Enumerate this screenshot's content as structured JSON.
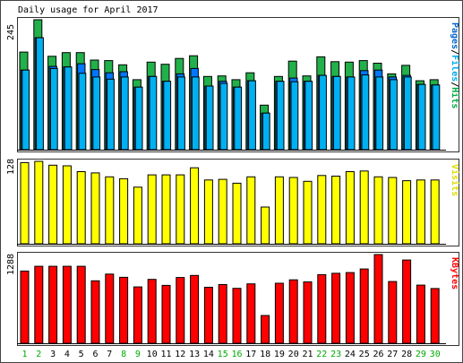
{
  "title": "Daily usage for April 2017",
  "chart_data": {
    "type": "bar",
    "title": "Daily usage for April 2017",
    "categories": [
      "1",
      "2",
      "3",
      "4",
      "5",
      "6",
      "7",
      "8",
      "9",
      "10",
      "11",
      "12",
      "13",
      "14",
      "15",
      "16",
      "17",
      "18",
      "19",
      "20",
      "21",
      "22",
      "23",
      "24",
      "25",
      "26",
      "27",
      "28",
      "29",
      "30"
    ],
    "weekend_days": [
      "1",
      "2",
      "8",
      "9",
      "15",
      "16",
      "22",
      "23",
      "29",
      "30"
    ],
    "panels": [
      {
        "id": "hits",
        "ylabel_parts": [
          {
            "text": "Pages",
            "color": "#0066cc"
          },
          {
            "text": "/",
            "color": "#000000"
          },
          {
            "text": "Files",
            "color": "#00aaee"
          },
          {
            "text": "/",
            "color": "#000000"
          },
          {
            "text": "Hits",
            "color": "#00aa44"
          }
        ],
        "tick_label": "245",
        "ylim": [
          0,
          245
        ],
        "series": [
          {
            "name": "Hits",
            "color": "#22b04a",
            "values": [
              184,
              245,
              176,
              183,
              183,
              169,
              168,
              160,
              132,
              165,
              161,
              172,
              177,
              138,
              139,
              132,
              145,
              84,
              138,
              167,
              139,
              175,
              166,
              165,
              168,
              163,
              143,
              159,
              130,
              132
            ]
          },
          {
            "name": "Files",
            "color": "#0077ff",
            "values": [
              150,
              211,
              157,
              156,
              162,
              151,
              145,
              147,
              118,
              138,
              129,
              143,
              153,
              120,
              129,
              118,
              130,
              69,
              129,
              135,
              129,
              140,
              138,
              137,
              149,
              150,
              137,
              140,
              123,
              122
            ]
          },
          {
            "name": "Pages",
            "color": "#00b0f0",
            "values": [
              150,
              211,
              153,
              156,
              144,
              137,
              133,
              137,
              118,
              138,
              129,
              137,
              137,
              120,
              125,
              118,
              130,
              69,
              129,
              128,
              129,
              140,
              138,
              137,
              141,
              137,
              132,
              137,
              123,
              122
            ]
          }
        ]
      },
      {
        "id": "visits",
        "ylabel_parts": [
          {
            "text": "Visits",
            "color": "#dddd00"
          }
        ],
        "tick_label": "128",
        "ylim": [
          0,
          128
        ],
        "series": [
          {
            "name": "Visits",
            "color": "#ffff00",
            "values": [
              126,
              128,
              122,
              121,
              112,
              110,
              104,
              101,
              88,
              107,
              107,
              107,
              118,
              99,
              100,
              94,
              104,
              57,
              104,
              103,
              97,
              106,
              105,
              112,
              113,
              104,
              103,
              98,
              99,
              99
            ]
          }
        ]
      },
      {
        "id": "kbytes",
        "ylabel_parts": [
          {
            "text": "KBytes",
            "color": "#ff0000"
          }
        ],
        "tick_label": "1288",
        "ylim": [
          0,
          1288
        ],
        "series": [
          {
            "name": "KBytes",
            "color": "#ff0000",
            "values": [
              1048,
              1117,
              1117,
              1117,
              1117,
              907,
              1005,
              958,
              818,
              927,
              840,
              955,
              985,
              813,
              852,
              797,
              863,
              403,
              872,
              921,
              891,
              997,
              1016,
              1026,
              1079,
              1288,
              896,
              1209,
              845,
              795
            ]
          }
        ]
      }
    ],
    "grid": false,
    "legend": "right-vertical-labels"
  }
}
